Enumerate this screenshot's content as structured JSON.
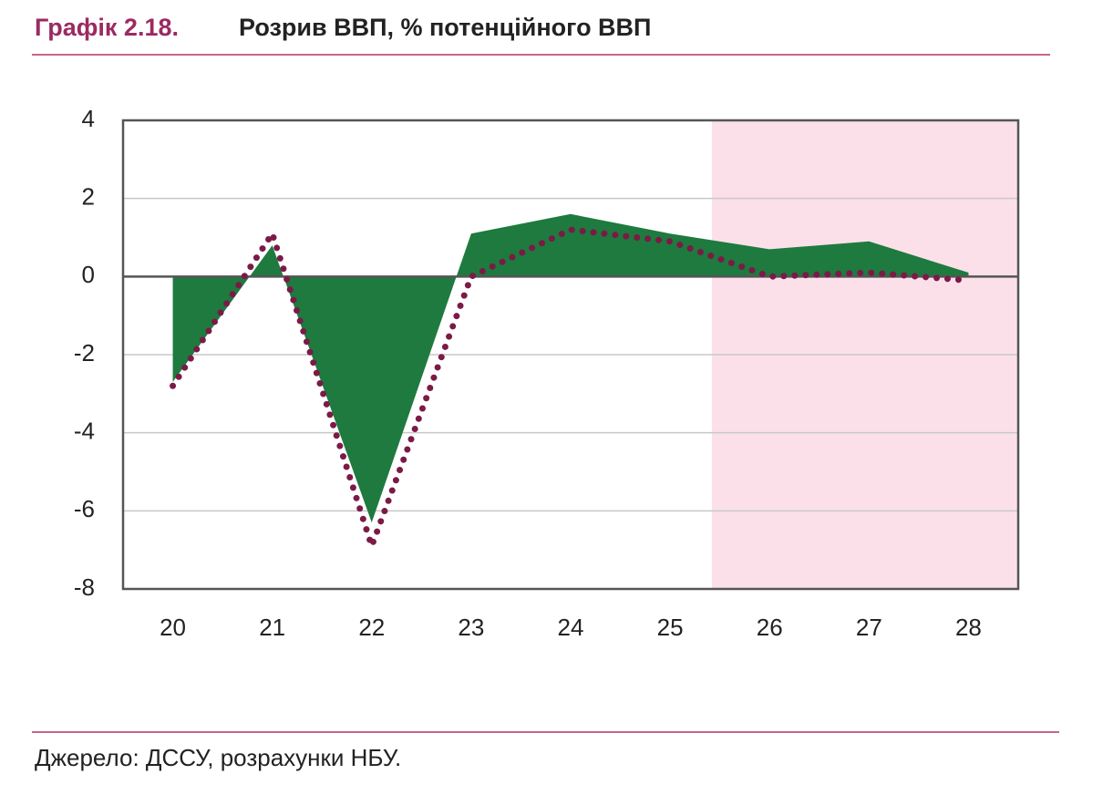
{
  "chart_data": {
    "type": "area",
    "title_prefix": "Графік 2.18.",
    "title": "Розрив ВВП, % потенційного ВВП",
    "source": "Джерело: ДССУ, розрахунки НБУ.",
    "categories": [
      "20",
      "21",
      "22",
      "23",
      "24",
      "25",
      "26",
      "27",
      "28"
    ],
    "series": [
      {
        "type": "area",
        "color": "#1e7a3e",
        "values": [
          -2.7,
          0.8,
          -6.3,
          1.1,
          1.6,
          1.1,
          0.7,
          0.9,
          0.1
        ]
      },
      {
        "type": "line",
        "color": "#7b1a47",
        "values": [
          -2.8,
          1.1,
          -6.9,
          0.0,
          1.2,
          0.9,
          0.0,
          0.1,
          -0.1
        ]
      }
    ],
    "ylim": [
      -8,
      4
    ],
    "yticks": [
      -8,
      -6,
      -4,
      -2,
      0,
      2,
      4
    ],
    "grid": true
  }
}
